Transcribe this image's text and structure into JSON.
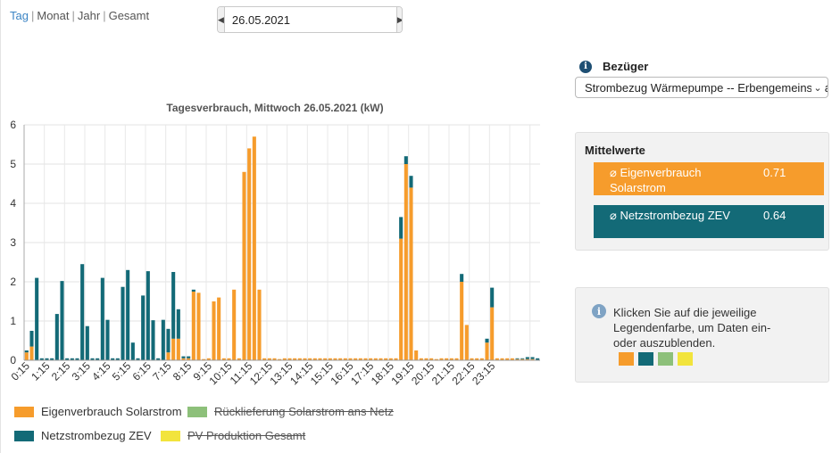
{
  "period_tabs": [
    "Tag",
    "Monat",
    "Jahr",
    "Gesamt"
  ],
  "date": "26.05.2021",
  "bezueger": {
    "label": "Bezüger",
    "selected": "Strombezug Wärmepumpe -- Erbengemeinschaft"
  },
  "mittelwerte": {
    "title": "Mittelwerte",
    "rows": [
      {
        "label": "⌀ Eigenverbrauch Solarstrom",
        "value": "0.71",
        "color": "#f69c2c"
      },
      {
        "label": "⌀ Netzstrombezug ZEV",
        "value": "0.64",
        "color": "#136a77"
      }
    ]
  },
  "hint": {
    "text": "Klicken Sie auf die jeweilige Legendenfarbe, um Daten ein- oder auszublenden.",
    "swatch_colors": [
      "#f69c2c",
      "#136a77",
      "#8dc07a",
      "#f2e43c"
    ]
  },
  "legend": [
    {
      "label": "Eigenverbrauch Solarstrom",
      "color": "#f69c2c",
      "hidden": false
    },
    {
      "label": "Rücklieferung Solarstrom ans Netz",
      "color": "#8dc07a",
      "hidden": true
    },
    {
      "label": "Netzstrombezug ZEV",
      "color": "#136a77",
      "hidden": false
    },
    {
      "label": "PV Produktion Gesamt",
      "color": "#f2e43c",
      "hidden": true
    }
  ],
  "chart_data": {
    "type": "bar",
    "stacked": true,
    "title": "Tagesverbrauch, Mittwoch 26.05.2021 (kW)",
    "ylim": [
      0,
      6
    ],
    "yticks": [
      0,
      1,
      2,
      3,
      4,
      5,
      6
    ],
    "x_labels": [
      "0:15",
      "1:15",
      "2:15",
      "3:15",
      "4:15",
      "5:15",
      "6:15",
      "7:15",
      "8:15",
      "9:15",
      "10:15",
      "11:15",
      "12:15",
      "13:15",
      "14:15",
      "15:15",
      "16:15",
      "17:15",
      "18:15",
      "19:15",
      "20:15",
      "21:15",
      "22:15",
      "23:15"
    ],
    "series": [
      {
        "name": "Eigenverbrauch Solarstrom",
        "color": "#f69c2c",
        "values": [
          0.2,
          0.35,
          0,
          0,
          0,
          0,
          0,
          0,
          0,
          0,
          0,
          0,
          0,
          0,
          0,
          0,
          0,
          0,
          0,
          0,
          0,
          0,
          0,
          0,
          0,
          0,
          0,
          0,
          0.2,
          0.55,
          0.55,
          0.05,
          0.05,
          1.75,
          1.72,
          0.03,
          0.05,
          1.5,
          1.6,
          0.05,
          0.05,
          1.8,
          0.05,
          4.8,
          5.4,
          5.7,
          1.8,
          0.05,
          0.05,
          0.05,
          0.03,
          0.05,
          0.05,
          0.05,
          0.05,
          0.05,
          0.05,
          0.05,
          0.05,
          0.05,
          0.05,
          0.05,
          0.05,
          0.05,
          0.05,
          0.05,
          0.05,
          0.05,
          0.05,
          0.05,
          0.05,
          0.05,
          0.05,
          0.05,
          3.1,
          5.0,
          4.4,
          0.25,
          0.05,
          0.05,
          0.05,
          0.03,
          0.05,
          0.05,
          0.05,
          0.05,
          2.0,
          0.9,
          0.05,
          0.05,
          0.05,
          0.45,
          1.35,
          0.05,
          0.05,
          0.05,
          0.05,
          0.03,
          0.03,
          0.03,
          0.03,
          0
        ]
      },
      {
        "name": "Netzstrombezug ZEV",
        "color": "#136a77",
        "values": [
          0.05,
          0.4,
          2.1,
          0.05,
          0.05,
          0.05,
          1.18,
          2.02,
          0.05,
          0.05,
          0.05,
          2.45,
          0.87,
          0.05,
          0.05,
          2.1,
          1.03,
          0.05,
          0.05,
          1.87,
          2.3,
          0.45,
          0.05,
          1.65,
          2.27,
          1.02,
          0.05,
          1.03,
          0.6,
          1.7,
          0.75,
          0.05,
          0.05,
          0.05,
          0,
          0,
          0,
          0,
          0,
          0,
          0,
          0,
          0,
          0,
          0,
          0,
          0,
          0,
          0,
          0,
          0,
          0,
          0,
          0,
          0,
          0,
          0,
          0,
          0,
          0,
          0,
          0,
          0,
          0,
          0,
          0,
          0,
          0,
          0,
          0,
          0,
          0,
          0,
          0,
          0.55,
          0.2,
          0.3,
          0,
          0,
          0,
          0,
          0,
          0,
          0,
          0,
          0,
          0.2,
          0,
          0,
          0,
          0,
          0.1,
          0.5,
          0,
          0,
          0,
          0,
          0.02,
          0.02,
          0.05,
          0.05,
          0.05
        ]
      }
    ]
  }
}
